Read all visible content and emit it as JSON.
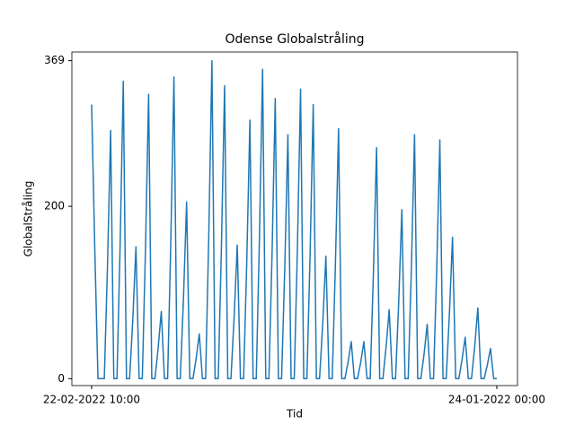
{
  "chart_data": {
    "type": "line",
    "title": "Odense Globalstråling",
    "x_label": "Tid",
    "y_label": "GlobalStråling",
    "categories": [
      "22-02-2022 10:00",
      null,
      null,
      null,
      null,
      null,
      null,
      null,
      null,
      null,
      null,
      null,
      null,
      null,
      null,
      null,
      null,
      null,
      null,
      null,
      null,
      null,
      null,
      null,
      null,
      null,
      null,
      null,
      null,
      null,
      null,
      null,
      null,
      null,
      null,
      null,
      null,
      null,
      null,
      null,
      null,
      null,
      null,
      null,
      null,
      null,
      null,
      null,
      null,
      null,
      null,
      null,
      null,
      null,
      null,
      null,
      null,
      null,
      null,
      null,
      null,
      null,
      null,
      null,
      null,
      null,
      null,
      null,
      null,
      null,
      null,
      null,
      null,
      null,
      null,
      null,
      null,
      null,
      null,
      null,
      null,
      null,
      null,
      null,
      null,
      null,
      null,
      null,
      null,
      null,
      null,
      null,
      null,
      null,
      null,
      null,
      null,
      null,
      null,
      null,
      null,
      null,
      null,
      null,
      null,
      null,
      null,
      null,
      null,
      null,
      null,
      null,
      null,
      null,
      null,
      null,
      null,
      null,
      null,
      null,
      null,
      null,
      null,
      null,
      null,
      null,
      null,
      null,
      "24-01-2022 00:00"
    ],
    "series": [
      {
        "name": "GlobalStråling",
        "color": "#1f77b4",
        "values": [
          318,
          150,
          0,
          0,
          0,
          130,
          288,
          0,
          0,
          155,
          345,
          0,
          0,
          69,
          153,
          0,
          0,
          149,
          330,
          0,
          0,
          35,
          78,
          0,
          0,
          158,
          350,
          0,
          0,
          92,
          205,
          0,
          0,
          23,
          52,
          0,
          0,
          166,
          369,
          0,
          0,
          153,
          340,
          0,
          0,
          70,
          155,
          0,
          0,
          135,
          300,
          0,
          0,
          162,
          359,
          0,
          0,
          146,
          325,
          0,
          0,
          127,
          283,
          0,
          0,
          151,
          336,
          0,
          0,
          143,
          318,
          0,
          0,
          64,
          142,
          0,
          0,
          131,
          290,
          0,
          0,
          19,
          43,
          0,
          0,
          19,
          43,
          0,
          0,
          121,
          268,
          0,
          0,
          36,
          80,
          0,
          0,
          88,
          196,
          0,
          0,
          127,
          283,
          0,
          0,
          28,
          63,
          0,
          0,
          125,
          277,
          0,
          0,
          74,
          164,
          0,
          0,
          22,
          48,
          0,
          0,
          37,
          82,
          0,
          0,
          16,
          35,
          0,
          0
        ]
      }
    ],
    "ylim": [
      -8,
      379
    ],
    "yticks": [
      0,
      200,
      369
    ],
    "grid": false
  }
}
